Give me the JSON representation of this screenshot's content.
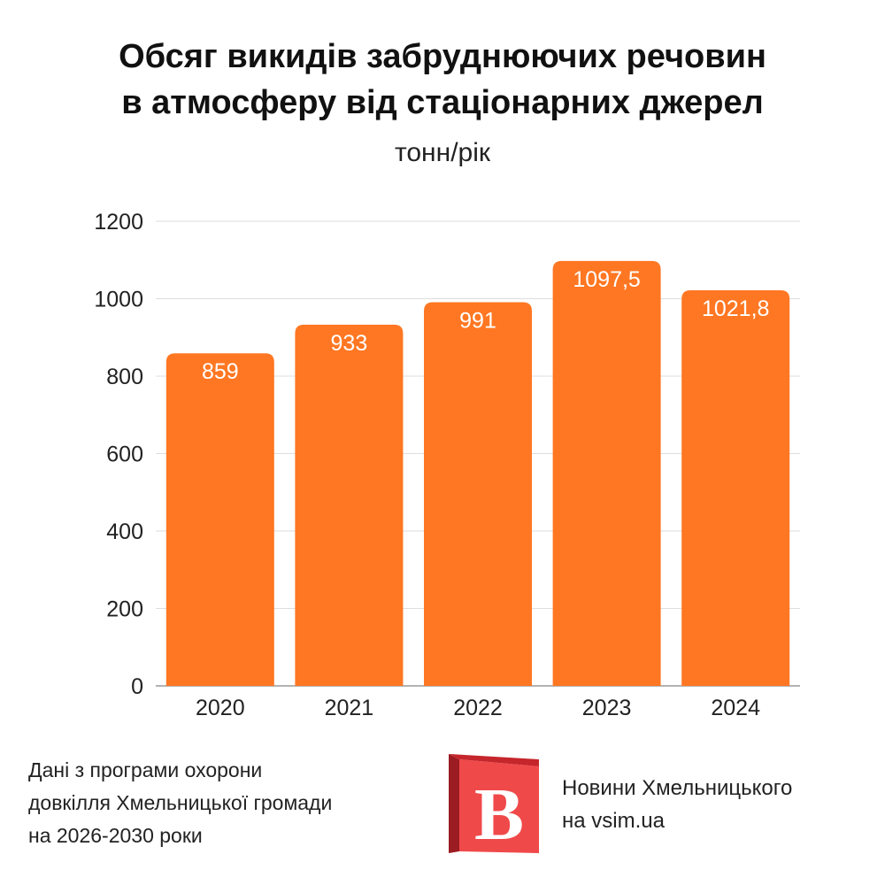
{
  "header": {
    "title_line1": "Обсяг викидів забруднюючих речовин",
    "title_line2": "в атмосферу від стаціонарних джерел",
    "subtitle": "тонн/рік"
  },
  "chart_data": {
    "type": "bar",
    "categories": [
      "2020",
      "2021",
      "2022",
      "2023",
      "2024"
    ],
    "values": [
      859,
      933,
      991,
      1097.5,
      1021.8
    ],
    "value_labels": [
      "859",
      "933",
      "991",
      "1097,5",
      "1021,8"
    ],
    "title": "Обсяг викидів забруднюючих речовин в атмосферу від стаціонарних джерел",
    "ylabel": "тонн/рік",
    "ylim": [
      0,
      1200
    ],
    "yticks": [
      0,
      200,
      400,
      600,
      800,
      1000,
      1200
    ],
    "grid": true,
    "bar_color": "#ff7722"
  },
  "footer": {
    "source_line1": "Дані з програми охорони",
    "source_line2": "довкілля Хмельницької громади",
    "source_line3": "на 2026-2030 роки",
    "brand_line1": "Новини Хмельницького",
    "brand_line2": "на vsim.ua",
    "logo_letter": "B",
    "logo_color": "#f0494a",
    "logo_dark": "#9b1c22"
  }
}
